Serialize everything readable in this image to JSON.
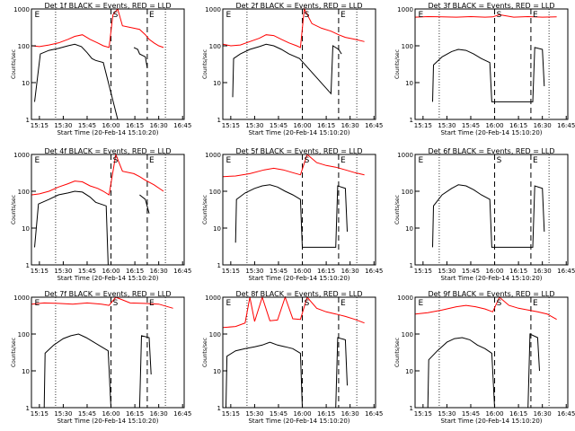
{
  "time_ticks": [
    "15:15",
    "15:30",
    "15:45",
    "16:00",
    "16:15",
    "16:30",
    "16:45"
  ],
  "y_ticks": [
    "1",
    "10",
    "100",
    "1000"
  ],
  "ylabel": "Counts/sec",
  "xlabel": "Start Time (20-Feb-14 15:10:20)",
  "markers": {
    "E": "E",
    "S": "S"
  },
  "colors": {
    "events": "#000000",
    "lld": "#ff0000"
  },
  "chart_data": [
    {
      "type": "line",
      "title": "Det 1f BLACK = Events, RED = LLD",
      "xlabel": "Start Time (20-Feb-14 15:10:20)",
      "ylabel": "Counts/sec",
      "ylim": [
        1,
        1000
      ],
      "yscale": "log",
      "series": [
        {
          "name": "Events",
          "color": "#000000",
          "x": [
            15.2,
            15.26,
            15.35,
            15.45,
            15.55,
            15.62,
            15.69,
            15.75,
            15.8,
            15.84,
            15.92,
            16.07,
            16.12,
            16.24,
            16.28,
            16.3,
            16.36,
            16.38
          ],
          "y": [
            3,
            60,
            75,
            85,
            100,
            110,
            95,
            65,
            45,
            40,
            35,
            0.3,
            null,
            90,
            80,
            60,
            50,
            25
          ]
        },
        {
          "name": "LLD",
          "color": "#ff0000",
          "x": [
            15.17,
            15.25,
            15.35,
            15.45,
            15.55,
            15.62,
            15.7,
            15.78,
            15.86,
            15.92,
            15.98,
            16.02,
            16.07,
            16.12,
            16.24,
            16.3,
            16.36,
            16.4,
            16.45,
            16.5,
            16.55
          ],
          "y": [
            100,
            95,
            105,
            120,
            150,
            180,
            200,
            150,
            120,
            100,
            90,
            700,
            1400,
            350,
            300,
            280,
            200,
            150,
            120,
            100,
            90
          ]
        }
      ]
    },
    {
      "type": "line",
      "title": "Det 2f BLACK = Events, RED = LLD",
      "xlabel": "Start Time (20-Feb-14 15:10:20)",
      "ylabel": "Counts/sec",
      "ylim": [
        1,
        1000
      ],
      "yscale": "log",
      "series": [
        {
          "name": "Events",
          "color": "#000000",
          "x": [
            15.27,
            15.28,
            15.35,
            15.45,
            15.55,
            15.62,
            15.7,
            15.78,
            15.86,
            15.97,
            16.3,
            16.32,
            16.38,
            16.41
          ],
          "y": [
            4,
            45,
            60,
            80,
            95,
            110,
            100,
            80,
            60,
            45,
            5,
            100,
            80,
            60
          ]
        },
        {
          "name": "LLD",
          "color": "#ff0000",
          "x": [
            15.17,
            15.25,
            15.35,
            15.45,
            15.55,
            15.62,
            15.7,
            15.78,
            15.86,
            15.94,
            15.98,
            16.02,
            16.1,
            16.2,
            16.3,
            16.38,
            16.45,
            16.55,
            16.65
          ],
          "y": [
            110,
            100,
            105,
            130,
            160,
            200,
            190,
            150,
            120,
            100,
            90,
            1200,
            400,
            300,
            250,
            200,
            170,
            150,
            130
          ]
        }
      ]
    },
    {
      "type": "line",
      "title": "Det 3f BLACK = Events, RED = LLD",
      "xlabel": "Start Time (20-Feb-14 15:10:20)",
      "ylabel": "Counts/sec",
      "ylim": [
        1,
        1000
      ],
      "yscale": "log",
      "series": [
        {
          "name": "Events",
          "color": "#000000",
          "x": [
            15.35,
            15.36,
            15.45,
            15.55,
            15.62,
            15.7,
            15.78,
            15.86,
            15.95,
            15.97,
            16.4,
            16.42,
            16.5,
            16.52
          ],
          "y": [
            3,
            30,
            50,
            70,
            80,
            75,
            60,
            45,
            35,
            3,
            3,
            90,
            80,
            8
          ]
        },
        {
          "name": "LLD",
          "color": "#ff0000",
          "x": [
            15.17,
            15.3,
            15.45,
            15.6,
            15.75,
            15.9,
            15.98,
            16.05,
            16.2,
            16.35,
            16.5,
            16.65
          ],
          "y": [
            600,
            620,
            610,
            600,
            620,
            600,
            610,
            700,
            600,
            620,
            600,
            610
          ]
        }
      ]
    },
    {
      "type": "line",
      "title": "Det 4f BLACK = Events, RED = LLD",
      "xlabel": "Start Time (20-Feb-14 15:10:20)",
      "ylabel": "Counts/sec",
      "ylim": [
        1,
        1000
      ],
      "yscale": "log",
      "series": [
        {
          "name": "Events",
          "color": "#000000",
          "x": [
            15.2,
            15.24,
            15.35,
            15.45,
            15.55,
            15.62,
            15.7,
            15.78,
            15.84,
            15.95,
            15.97,
            16.25,
            16.3,
            16.36,
            16.4
          ],
          "y": [
            3,
            45,
            60,
            80,
            90,
            100,
            95,
            70,
            50,
            40,
            1,
            null,
            80,
            60,
            25
          ]
        },
        {
          "name": "LLD",
          "color": "#ff0000",
          "x": [
            15.17,
            15.25,
            15.35,
            15.45,
            15.55,
            15.62,
            15.7,
            15.78,
            15.86,
            15.92,
            15.98,
            16.05,
            16.12,
            16.24,
            16.3,
            16.36,
            16.45,
            16.55
          ],
          "y": [
            80,
            85,
            100,
            130,
            160,
            190,
            180,
            140,
            120,
            100,
            80,
            1200,
            350,
            300,
            250,
            200,
            150,
            100
          ]
        }
      ]
    },
    {
      "type": "line",
      "title": "Det 5f BLACK = Events, RED = LLD",
      "xlabel": "Start Time (20-Feb-14 15:10:20)",
      "ylabel": "Counts/sec",
      "ylim": [
        1,
        1000
      ],
      "yscale": "log",
      "series": [
        {
          "name": "Events",
          "color": "#000000",
          "x": [
            15.3,
            15.31,
            15.4,
            15.5,
            15.58,
            15.66,
            15.74,
            15.82,
            15.9,
            15.98,
            16.0,
            16.35,
            16.37,
            16.45,
            16.47
          ],
          "y": [
            4,
            60,
            90,
            120,
            140,
            150,
            130,
            100,
            80,
            60,
            3,
            3,
            140,
            120,
            8
          ]
        },
        {
          "name": "LLD",
          "color": "#ff0000",
          "x": [
            15.17,
            15.3,
            15.45,
            15.6,
            15.7,
            15.8,
            15.9,
            15.98,
            16.05,
            16.15,
            16.25,
            16.35,
            16.45,
            16.55,
            16.65
          ],
          "y": [
            250,
            260,
            300,
            380,
            420,
            380,
            320,
            280,
            1300,
            600,
            500,
            450,
            380,
            320,
            280
          ]
        }
      ]
    },
    {
      "type": "line",
      "title": "Det 6f BLACK = Events, RED = LLD",
      "xlabel": "Start Time (20-Feb-14 15:10:20)",
      "ylabel": "Counts/sec",
      "ylim": [
        1,
        1000
      ],
      "yscale": "log",
      "series": [
        {
          "name": "Events",
          "color": "#000000",
          "x": [
            15.35,
            15.36,
            15.45,
            15.55,
            15.62,
            15.7,
            15.78,
            15.86,
            15.95,
            15.97,
            16.4,
            16.42,
            16.5,
            16.52
          ],
          "y": [
            3,
            40,
            80,
            120,
            150,
            140,
            110,
            80,
            60,
            3,
            3,
            140,
            120,
            8
          ]
        }
      ]
    },
    {
      "type": "line",
      "title": "Det 7f BLACK = Events, RED = LLD",
      "xlabel": "Start Time (20-Feb-14 15:10:20)",
      "ylabel": "Counts/sec",
      "ylim": [
        1,
        1000
      ],
      "yscale": "log",
      "series": [
        {
          "name": "Events",
          "color": "#000000",
          "x": [
            15.3,
            15.31,
            15.4,
            15.5,
            15.58,
            15.66,
            15.74,
            15.82,
            15.9,
            15.97,
            16.0,
            16.3,
            16.32,
            16.4,
            16.42
          ],
          "y": [
            1,
            30,
            50,
            75,
            90,
            100,
            80,
            60,
            45,
            35,
            1,
            1,
            90,
            80,
            8
          ]
        },
        {
          "name": "LLD",
          "color": "#ff0000",
          "x": [
            15.17,
            15.3,
            15.45,
            15.6,
            15.75,
            15.9,
            15.98,
            16.05,
            16.2,
            16.35,
            16.5,
            16.65
          ],
          "y": [
            650,
            700,
            680,
            650,
            700,
            650,
            600,
            1200,
            700,
            680,
            650,
            500
          ]
        }
      ]
    },
    {
      "type": "line",
      "title": "Det 8f BLACK = Events, RED = LLD",
      "xlabel": "Start Time (20-Feb-14 15:10:20)",
      "ylabel": "Counts/sec",
      "ylim": [
        1,
        1000
      ],
      "yscale": "log",
      "series": [
        {
          "name": "Events",
          "color": "#000000",
          "x": [
            15.2,
            15.21,
            15.3,
            15.4,
            15.5,
            15.58,
            15.66,
            15.74,
            15.82,
            15.9,
            15.98,
            16.0,
            16.35,
            16.37,
            16.45,
            16.47
          ],
          "y": [
            1,
            25,
            35,
            40,
            45,
            50,
            60,
            50,
            45,
            40,
            30,
            1,
            1,
            80,
            70,
            4
          ]
        },
        {
          "name": "LLD",
          "color": "#ff0000",
          "x": [
            15.17,
            15.3,
            15.4,
            15.45,
            15.5,
            15.58,
            15.66,
            15.74,
            15.82,
            15.9,
            15.98,
            16.05,
            16.15,
            16.25,
            16.35,
            16.45,
            16.55,
            16.65
          ],
          "y": [
            150,
            160,
            200,
            1500,
            220,
            1500,
            230,
            240,
            1400,
            260,
            250,
            1300,
            500,
            400,
            350,
            300,
            250,
            200
          ]
        }
      ]
    },
    {
      "type": "line",
      "title": "Det 9f BLACK = Events, RED = LLD",
      "xlabel": "Start Time (20-Feb-14 15:10:20)",
      "ylabel": "Counts/sec",
      "ylim": [
        1,
        1000
      ],
      "yscale": "log",
      "series": [
        {
          "name": "Events",
          "color": "#000000",
          "x": [
            15.3,
            15.31,
            15.4,
            15.5,
            15.58,
            15.66,
            15.74,
            15.82,
            15.9,
            15.97,
            16.0,
            16.35,
            16.37,
            16.45,
            16.47
          ],
          "y": [
            1,
            20,
            35,
            60,
            75,
            80,
            70,
            50,
            40,
            30,
            1,
            1,
            100,
            80,
            10
          ]
        },
        {
          "name": "LLD",
          "color": "#ff0000",
          "x": [
            15.17,
            15.3,
            15.45,
            15.6,
            15.7,
            15.8,
            15.9,
            15.98,
            16.05,
            16.15,
            16.25,
            16.35,
            16.45,
            16.55,
            16.65
          ],
          "y": [
            350,
            380,
            450,
            550,
            600,
            550,
            480,
            400,
            1300,
            600,
            500,
            450,
            400,
            350,
            250
          ]
        }
      ]
    }
  ]
}
